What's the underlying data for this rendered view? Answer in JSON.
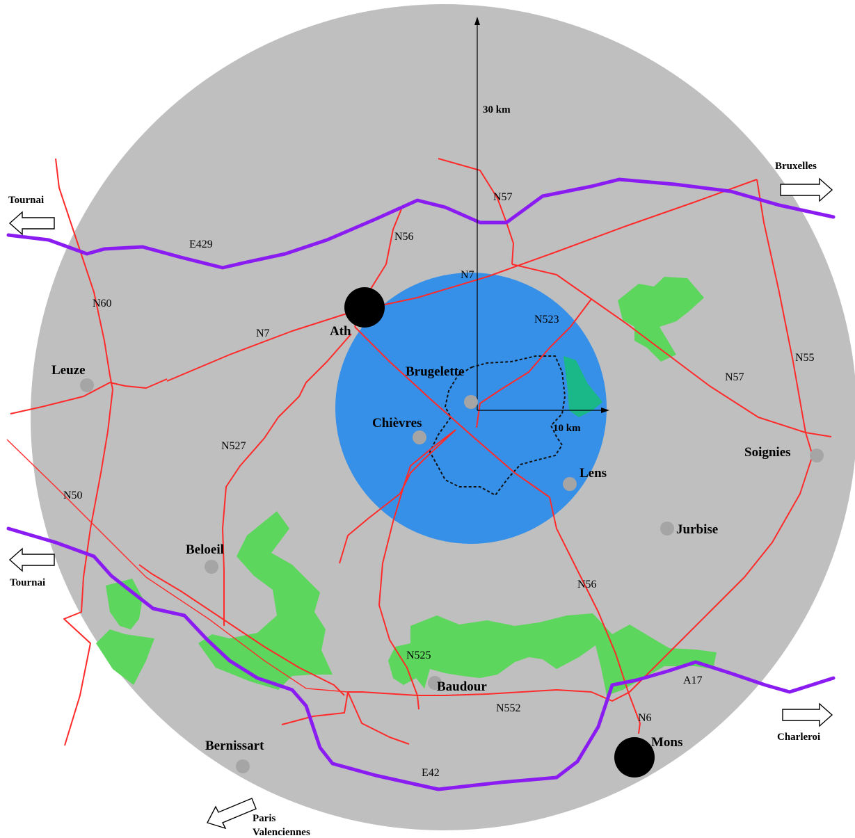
{
  "colors": {
    "outer_zone": "#bfbfbf",
    "inner_zone": "#3790e8",
    "roads": "#ff2a2a",
    "motorways": "#8a1cf2",
    "forest": "#5cd65c"
  },
  "distances": {
    "outer": "30 km",
    "inner": "10 km"
  },
  "towns": {
    "ath": "Ath",
    "mons": "Mons",
    "leuze": "Leuze",
    "brugelette": "Brugelette",
    "chievres": "Chièvres",
    "lens": "Lens",
    "soignies": "Soignies",
    "jurbise": "Jurbise",
    "beloeil": "Beloeil",
    "baudour": "Baudour",
    "bernissart": "Bernissart"
  },
  "roads": {
    "e429": "E429",
    "e42": "E42",
    "a17": "A17",
    "n57_top": "N57",
    "n57_right": "N57",
    "n56_top": "N56",
    "n56_bottom": "N56",
    "n7_mid": "N7",
    "n7_left": "N7",
    "n60": "N60",
    "n523": "N523",
    "n55": "N55",
    "n527": "N527",
    "n50": "N50",
    "n525": "N525",
    "n552": "N552",
    "n6": "N6"
  },
  "directions": {
    "tournai_top": "Tournai",
    "tournai_bottom": "Tournai",
    "bruxelles": "Bruxelles",
    "charleroi": "Charleroi",
    "paris": "Paris",
    "valenciennes": "Valenciennes"
  }
}
